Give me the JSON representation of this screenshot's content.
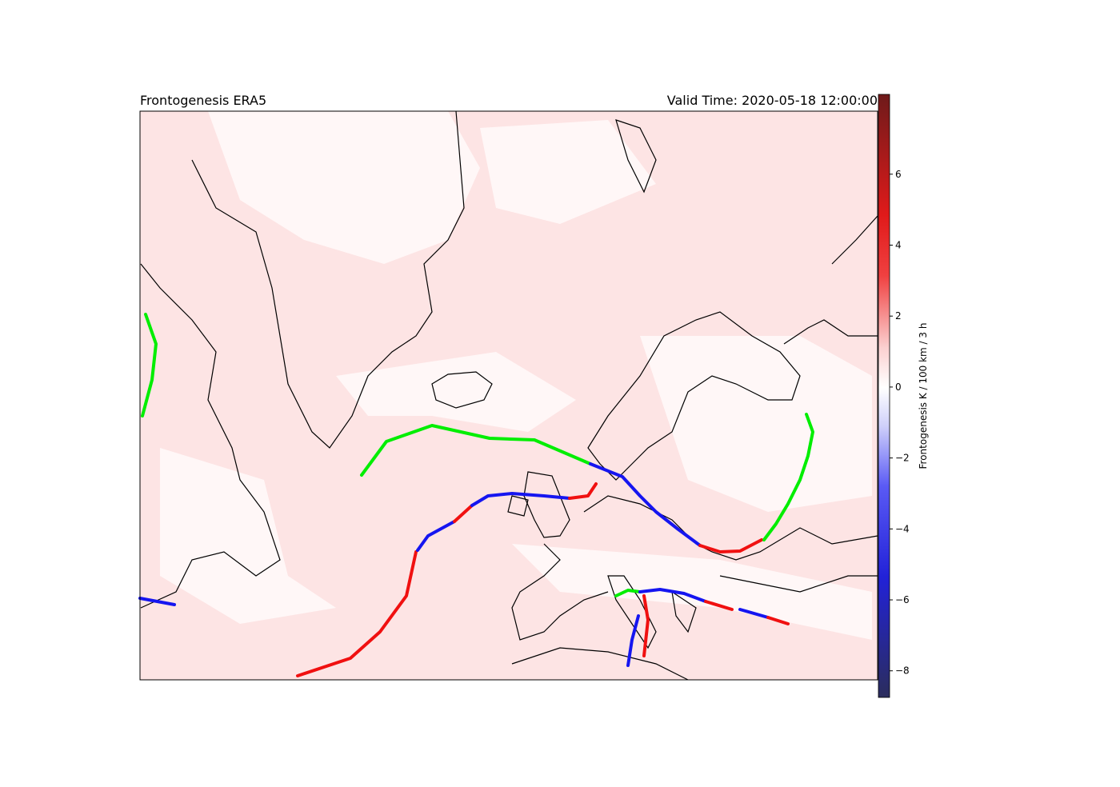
{
  "map": {
    "title_left": "Frontogenesis ERA5",
    "title_right": "Valid Time: 2020-05-18 12:00:00",
    "colorbar": {
      "label": "Frontogenesis K / 100 km / 3 h",
      "lim": [
        -8.75,
        8.25
      ],
      "ticks": [
        {
          "value": -8,
          "label": "−8"
        },
        {
          "value": -6,
          "label": "−6"
        },
        {
          "value": -4,
          "label": "−4"
        },
        {
          "value": -2,
          "label": "−2"
        },
        0,
        2,
        4,
        6
      ]
    }
  }
}
